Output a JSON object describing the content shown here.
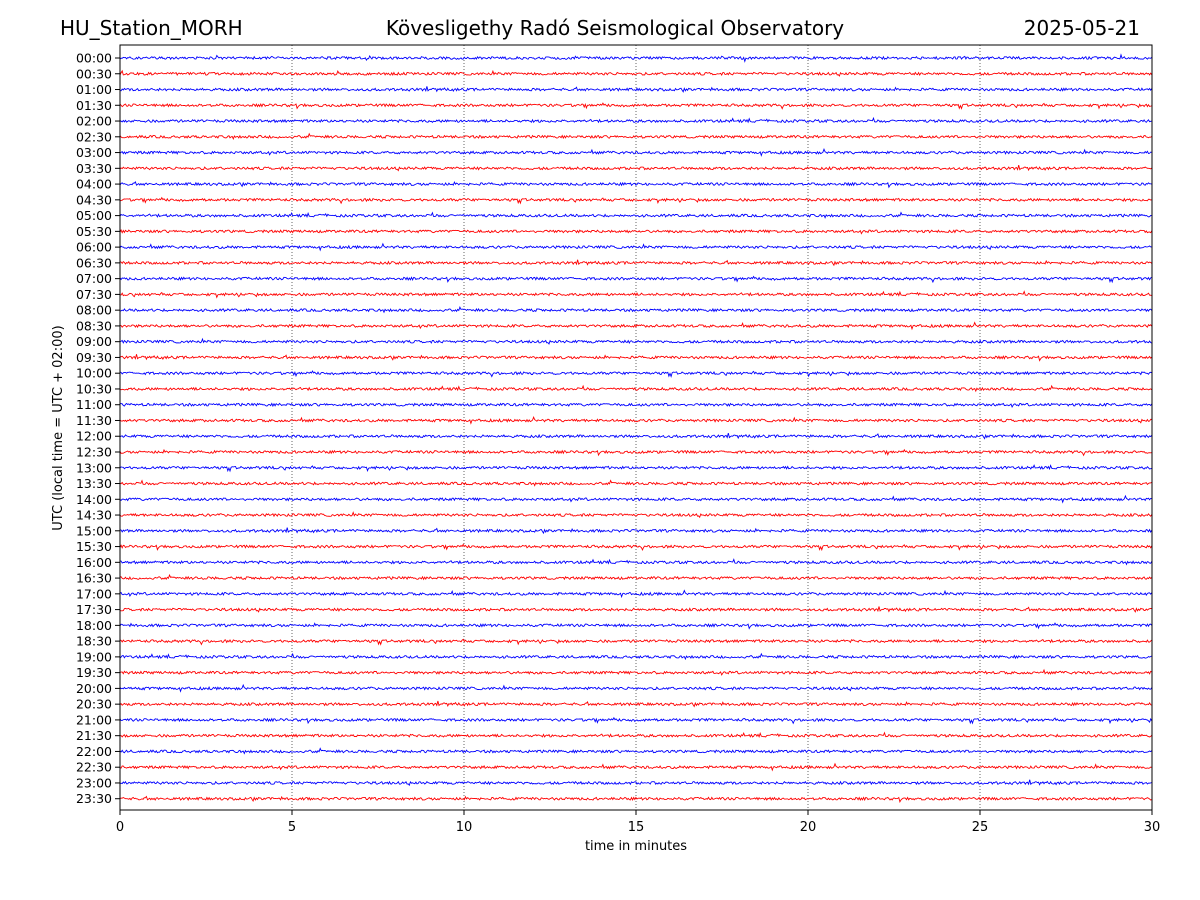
{
  "header": {
    "station": "HU_Station_MORH",
    "observatory": "Kövesligethy Radó Seismological Observatory",
    "date": "2025-05-21"
  },
  "chart_data": {
    "type": "line",
    "title": "Kövesligethy Radó Seismological Observatory",
    "xlabel": "time in minutes",
    "ylabel": "UTC (local time = UTC + 02:00)",
    "xlim": [
      0,
      30
    ],
    "x_ticks": [
      "0",
      "5",
      "10",
      "15",
      "20",
      "25",
      "30"
    ],
    "grid": "vertical dotted lines every 5 minutes",
    "trace_colors": [
      "#0000ff",
      "#ff0000"
    ],
    "rows": [
      "00:00",
      "00:30",
      "01:00",
      "01:30",
      "02:00",
      "02:30",
      "03:00",
      "03:30",
      "04:00",
      "04:30",
      "05:00",
      "05:30",
      "06:00",
      "06:30",
      "07:00",
      "07:30",
      "08:00",
      "08:30",
      "09:00",
      "09:30",
      "10:00",
      "10:30",
      "11:00",
      "11:30",
      "12:00",
      "12:30",
      "13:00",
      "13:30",
      "14:00",
      "14:30",
      "15:00",
      "15:30",
      "16:00",
      "16:30",
      "17:00",
      "17:30",
      "18:00",
      "18:30",
      "19:00",
      "19:30",
      "20:00",
      "20:30",
      "21:00",
      "21:30",
      "22:00",
      "22:30",
      "23:00",
      "23:30"
    ]
  }
}
